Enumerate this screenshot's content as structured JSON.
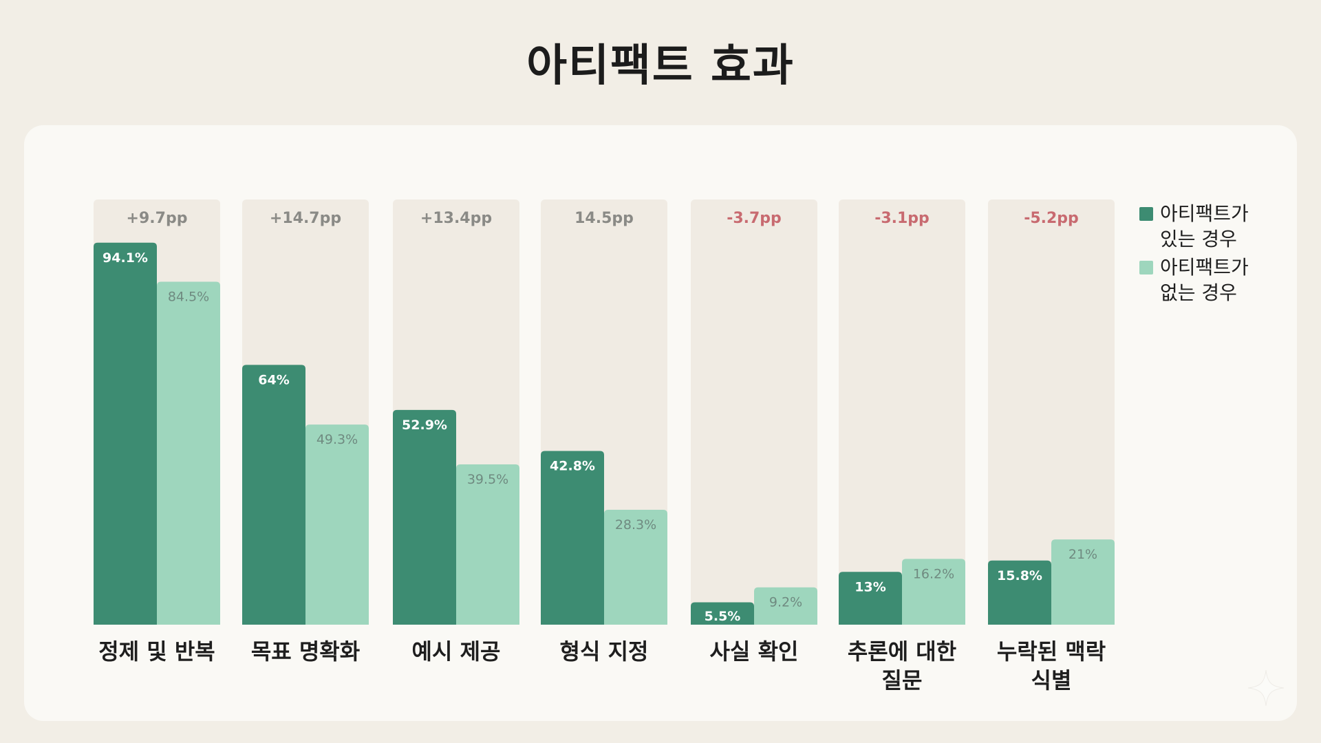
{
  "chart_data": {
    "type": "bar",
    "title": "아티팩트 효과",
    "categories": [
      "정제 및 반복",
      "목표 명확화",
      "예시 제공",
      "형식 지정",
      "사실 확인",
      "추론에 대한 질문",
      "누락된 맥락 식별"
    ],
    "category_lines": [
      [
        "정제 및 반복"
      ],
      [
        "목표 명확화"
      ],
      [
        "예시 제공"
      ],
      [
        "형식 지정"
      ],
      [
        "사실 확인"
      ],
      [
        "추론에 대한",
        "질문"
      ],
      [
        "누락된 맥락",
        "식별"
      ]
    ],
    "series": [
      {
        "name": "아티팩트가 있는 경우",
        "name_lines": [
          "아티팩트가",
          "있는 경우"
        ],
        "color": "#3d8c72",
        "values": [
          94.1,
          64,
          52.9,
          42.8,
          5.5,
          13,
          15.8
        ],
        "labels": [
          "94.1%",
          "64%",
          "52.9%",
          "42.8%",
          "5.5%",
          "13%",
          "15.8%"
        ]
      },
      {
        "name": "아티팩트가 없는 경우",
        "name_lines": [
          "아티팩트가",
          "없는 경우"
        ],
        "color": "#9ed6bd",
        "values": [
          84.5,
          49.3,
          39.5,
          28.3,
          9.2,
          16.2,
          21
        ],
        "labels": [
          "84.5%",
          "49.3%",
          "39.5%",
          "28.3%",
          "9.2%",
          "16.2%",
          "21%"
        ]
      }
    ],
    "differences": [
      "+9.7pp",
      "+14.7pp",
      "+13.4pp",
      "14.5pp",
      "-3.7pp",
      "-3.1pp",
      "-5.2pp"
    ],
    "ylim": [
      0,
      100
    ],
    "legend_position": "right",
    "grid": false,
    "colors": {
      "positive_diff": "#8a8a86",
      "negative_diff": "#c86a70",
      "category_track": "#f0ebe3"
    }
  }
}
